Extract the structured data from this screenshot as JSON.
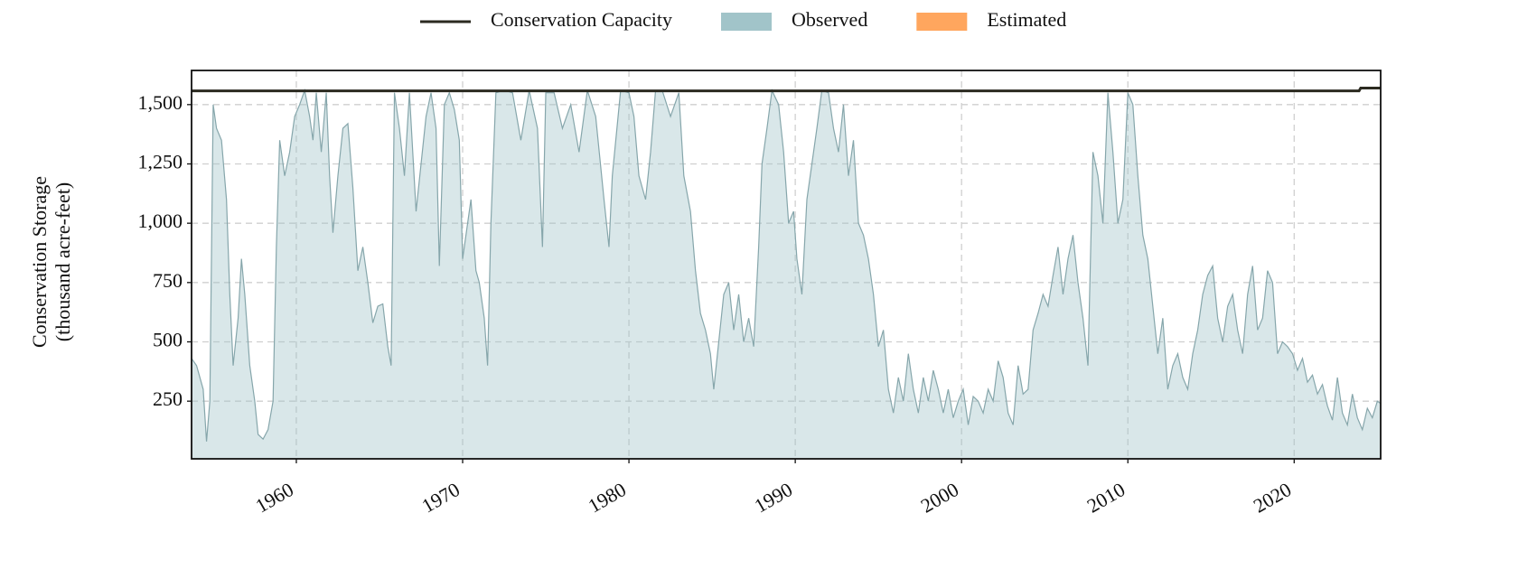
{
  "chart_data": {
    "type": "area",
    "ylabel": [
      "Conservation Storage",
      "(thousand acre-feet)"
    ],
    "xlim": [
      1953.7,
      2025.2
    ],
    "ylim": [
      7,
      1644
    ],
    "xticks": [
      1960,
      1970,
      1980,
      1990,
      2000,
      2010,
      2020
    ],
    "yticks": [
      250,
      500,
      750,
      {
        "value": 1000,
        "label": "1,000"
      },
      {
        "value": 1250,
        "label": "1,250"
      },
      {
        "value": 1500,
        "label": "1,500"
      }
    ],
    "grid": true,
    "legend": "top",
    "series": [
      {
        "name": "Conservation Capacity",
        "kind": "line",
        "color": "#2b2a20",
        "x": [
          1953.7,
          2023.9,
          2024.0,
          2025.2
        ],
        "values": [
          1558,
          1558,
          1570,
          1570
        ]
      },
      {
        "name": "Observed",
        "kind": "area",
        "color": "#a1c4c9",
        "x": [
          1953.7,
          1954.0,
          1954.4,
          1954.6,
          1954.8,
          1955.0,
          1955.2,
          1955.5,
          1955.8,
          1956.0,
          1956.2,
          1956.5,
          1956.7,
          1956.9,
          1957.2,
          1957.5,
          1957.7,
          1958.0,
          1958.3,
          1958.6,
          1958.8,
          1959.0,
          1959.3,
          1959.6,
          1959.9,
          1960.2,
          1960.5,
          1960.8,
          1961.0,
          1961.2,
          1961.5,
          1961.8,
          1962.0,
          1962.2,
          1962.5,
          1962.8,
          1963.1,
          1963.4,
          1963.7,
          1964.0,
          1964.3,
          1964.6,
          1964.9,
          1965.2,
          1965.5,
          1965.7,
          1965.9,
          1966.2,
          1966.5,
          1966.8,
          1967.0,
          1967.2,
          1967.5,
          1967.8,
          1968.1,
          1968.4,
          1968.6,
          1968.9,
          1969.2,
          1969.5,
          1969.8,
          1970.0,
          1970.3,
          1970.5,
          1970.8,
          1971.0,
          1971.3,
          1971.5,
          1971.7,
          1972.0,
          1972.5,
          1973.0,
          1973.5,
          1974.0,
          1974.5,
          1974.8,
          1975.0,
          1975.5,
          1976.0,
          1976.5,
          1977.0,
          1977.5,
          1978.0,
          1978.5,
          1978.8,
          1979.0,
          1979.5,
          1980.0,
          1980.3,
          1980.6,
          1981.0,
          1981.3,
          1981.6,
          1982.0,
          1982.5,
          1983.0,
          1983.3,
          1983.7,
          1984.0,
          1984.3,
          1984.6,
          1984.9,
          1985.1,
          1985.4,
          1985.7,
          1986.0,
          1986.3,
          1986.6,
          1986.9,
          1987.2,
          1987.5,
          1987.8,
          1988.0,
          1988.3,
          1988.6,
          1989.0,
          1989.3,
          1989.6,
          1989.9,
          1990.1,
          1990.4,
          1990.7,
          1991.0,
          1991.3,
          1991.6,
          1992.0,
          1992.3,
          1992.6,
          1992.9,
          1993.2,
          1993.5,
          1993.8,
          1994.1,
          1994.4,
          1994.7,
          1995.0,
          1995.3,
          1995.6,
          1995.9,
          1996.2,
          1996.5,
          1996.8,
          1997.1,
          1997.4,
          1997.7,
          1998.0,
          1998.3,
          1998.6,
          1998.9,
          1999.2,
          1999.5,
          1999.8,
          2000.1,
          2000.4,
          2000.7,
          2001.0,
          2001.3,
          2001.6,
          2001.9,
          2002.2,
          2002.5,
          2002.8,
          2003.1,
          2003.4,
          2003.7,
          2004.0,
          2004.3,
          2004.6,
          2004.9,
          2005.2,
          2005.5,
          2005.8,
          2006.1,
          2006.4,
          2006.7,
          2007.0,
          2007.3,
          2007.6,
          2007.9,
          2008.2,
          2008.5,
          2008.8,
          2009.1,
          2009.4,
          2009.7,
          2010.0,
          2010.3,
          2010.6,
          2010.9,
          2011.2,
          2011.5,
          2011.8,
          2012.1,
          2012.4,
          2012.7,
          2013.0,
          2013.3,
          2013.6,
          2013.9,
          2014.2,
          2014.5,
          2014.8,
          2015.1,
          2015.4,
          2015.7,
          2016.0,
          2016.3,
          2016.6,
          2016.9,
          2017.2,
          2017.5,
          2017.8,
          2018.1,
          2018.4,
          2018.7,
          2019.0,
          2019.3,
          2019.6,
          2019.9,
          2020.2,
          2020.5,
          2020.8,
          2021.1,
          2021.4,
          2021.7,
          2022.0,
          2022.3,
          2022.6,
          2022.9,
          2023.2,
          2023.5,
          2023.8,
          2024.1,
          2024.4,
          2024.7,
          2025.0,
          2025.2
        ],
        "values": [
          430,
          400,
          300,
          80,
          250,
          1500,
          1400,
          1350,
          1100,
          700,
          400,
          600,
          850,
          700,
          400,
          250,
          110,
          90,
          130,
          250,
          900,
          1350,
          1200,
          1300,
          1450,
          1500,
          1560,
          1450,
          1350,
          1550,
          1300,
          1550,
          1200,
          960,
          1200,
          1400,
          1420,
          1150,
          800,
          900,
          750,
          580,
          650,
          660,
          480,
          400,
          1550,
          1400,
          1200,
          1550,
          1300,
          1050,
          1250,
          1450,
          1550,
          1400,
          820,
          1500,
          1550,
          1480,
          1350,
          850,
          1000,
          1100,
          800,
          750,
          600,
          400,
          1000,
          1550,
          1560,
          1550,
          1350,
          1560,
          1400,
          900,
          1550,
          1550,
          1400,
          1500,
          1300,
          1560,
          1450,
          1100,
          900,
          1200,
          1560,
          1550,
          1450,
          1200,
          1100,
          1300,
          1560,
          1560,
          1450,
          1550,
          1200,
          1050,
          800,
          620,
          550,
          450,
          300,
          500,
          700,
          750,
          550,
          700,
          500,
          600,
          480,
          900,
          1250,
          1400,
          1560,
          1500,
          1300,
          1000,
          1050,
          850,
          700,
          1100,
          1250,
          1400,
          1560,
          1550,
          1400,
          1300,
          1500,
          1200,
          1350,
          1000,
          950,
          850,
          700,
          480,
          550,
          300,
          200,
          350,
          250,
          450,
          300,
          200,
          350,
          250,
          380,
          300,
          200,
          300,
          180,
          250,
          300,
          150,
          270,
          250,
          200,
          300,
          250,
          420,
          350,
          200,
          150,
          400,
          280,
          300,
          550,
          620,
          700,
          650,
          780,
          900,
          700,
          850,
          950,
          750,
          600,
          400,
          1300,
          1200,
          1000,
          1550,
          1300,
          1000,
          1100,
          1550,
          1500,
          1200,
          950,
          850,
          650,
          450,
          600,
          300,
          400,
          450,
          350,
          300,
          450,
          550,
          700,
          780,
          820,
          600,
          500,
          650,
          700,
          550,
          450,
          700,
          820,
          550,
          600,
          800,
          750,
          450,
          500,
          480,
          450,
          380,
          430,
          330,
          360,
          280,
          320,
          230,
          170,
          350,
          200,
          150,
          280,
          180,
          130,
          220,
          180,
          250,
          240
        ]
      },
      {
        "name": "Estimated",
        "kind": "area",
        "color": "#ffa65e",
        "x": [],
        "values": []
      }
    ]
  }
}
